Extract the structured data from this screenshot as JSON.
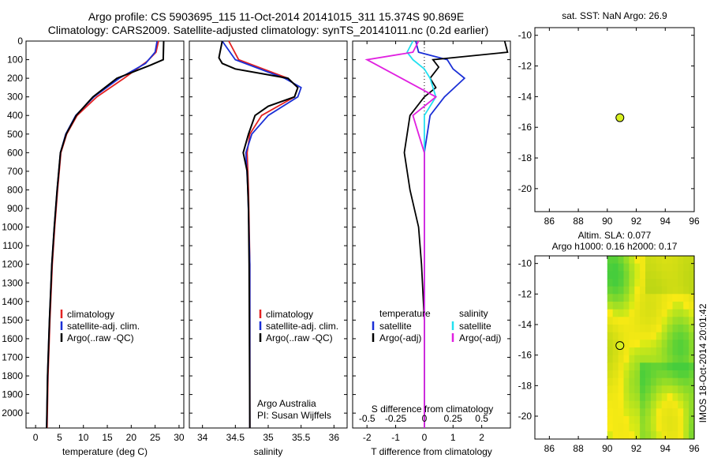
{
  "header": {
    "line1": "Argo profile: CS 5903695_115 11-Oct-2014 20141015_311 15.374S 90.869E",
    "line2": "Climatology: CARS2009. Satellite-adjusted climatology: synTS_20141011.nc (0.2d earlier)"
  },
  "side_stamp": "IMOS 18-Oct-2014 20:01:42",
  "colors": {
    "climatology": "#e32222",
    "satellite": "#1a2fd6",
    "argo": "#000000",
    "cyan": "#22e0f0",
    "magenta": "#e020e0",
    "marker": "#d8f020"
  },
  "chart_data": [
    {
      "type": "line",
      "title": "",
      "xlabel": "temperature (deg C)",
      "ylabel": "",
      "xlim": [
        -2,
        31
      ],
      "ylim": [
        2080,
        0
      ],
      "xticks": [
        "0",
        "5",
        "10",
        "15",
        "20",
        "25",
        "30"
      ],
      "yticks": [
        "0",
        "100",
        "200",
        "300",
        "400",
        "500",
        "600",
        "700",
        "800",
        "900",
        "1000",
        "1100",
        "1200",
        "1300",
        "1400",
        "1500",
        "1600",
        "1700",
        "1800",
        "1900",
        "2000"
      ],
      "legend": [
        "climatology",
        "satellite-adj. clim.",
        "Argo(..raw -QC)"
      ],
      "series": [
        {
          "name": "climatology",
          "depth": [
            0,
            60,
            110,
            200,
            300,
            400,
            500,
            600,
            800,
            1000,
            1200,
            1500,
            1800,
            2080
          ],
          "values": [
            25.7,
            25.2,
            23.3,
            18.5,
            12.8,
            8.7,
            6.5,
            5.3,
            4.6,
            4.0,
            3.5,
            3.0,
            2.6,
            2.4
          ]
        },
        {
          "name": "satellite-adj. clim.",
          "depth": [
            0,
            60,
            120,
            200,
            300,
            400,
            500,
            600,
            800,
            1000,
            1200,
            1500,
            1800,
            2080
          ],
          "values": [
            25.4,
            25.0,
            23.0,
            17.5,
            12.2,
            8.4,
            6.3,
            5.2,
            4.5,
            3.9,
            3.4,
            2.9,
            2.5,
            2.3
          ]
        },
        {
          "name": "Argo(..raw -QC)",
          "depth": [
            0,
            100,
            130,
            200,
            300,
            400,
            500,
            600,
            800,
            1000,
            1200,
            1500,
            1800,
            2080
          ],
          "values": [
            26.8,
            26.7,
            24.0,
            17.0,
            12.0,
            8.5,
            6.4,
            5.2,
            4.5,
            3.9,
            3.4,
            2.9,
            2.5,
            2.3
          ]
        }
      ]
    },
    {
      "type": "line",
      "title": "",
      "xlabel": "salinity",
      "xlim": [
        33.8,
        36.2
      ],
      "ylim": [
        2080,
        0
      ],
      "xticks": [
        "34",
        "34.5",
        "35",
        "35.5",
        "36"
      ],
      "legend": [
        "climatology",
        "satellite-adj. clim.",
        "Argo(..raw -QC)"
      ],
      "annotation": [
        "Argo Australia",
        "PI: Susan Wijffels"
      ],
      "series": [
        {
          "name": "climatology",
          "depth": [
            0,
            100,
            200,
            250,
            300,
            400,
            500,
            600,
            800,
            1200,
            2080
          ],
          "values": [
            34.4,
            34.55,
            35.3,
            35.45,
            35.4,
            34.9,
            34.72,
            34.68,
            34.7,
            34.72,
            34.72
          ]
        },
        {
          "name": "satellite-adj. clim.",
          "depth": [
            0,
            100,
            200,
            250,
            300,
            400,
            500,
            600,
            800,
            1200,
            2080
          ],
          "values": [
            34.3,
            34.5,
            35.25,
            35.5,
            35.45,
            35.0,
            34.75,
            34.66,
            34.69,
            34.72,
            34.72
          ]
        },
        {
          "name": "Argo(..raw -QC)",
          "depth": [
            0,
            90,
            120,
            150,
            200,
            250,
            300,
            350,
            400,
            500,
            600,
            700,
            900,
            1200,
            2080
          ],
          "values": [
            34.3,
            34.25,
            34.3,
            34.5,
            35.3,
            35.45,
            35.4,
            35.0,
            34.8,
            34.7,
            34.62,
            34.68,
            34.7,
            34.71,
            34.72
          ]
        }
      ]
    },
    {
      "type": "line",
      "title": "",
      "xlabel": "T difference from climatology",
      "xlabel2": "S difference from climatology",
      "xlim": [
        -2.5,
        3
      ],
      "ylim": [
        2080,
        0
      ],
      "xticks": [
        "-2",
        "-1",
        "0",
        "1",
        "2"
      ],
      "xticks2": [
        "-0.5",
        "-0.25",
        "0",
        "0.25",
        "0.5"
      ],
      "legend_temperature": [
        "temperature",
        "satellite",
        "Argo(-adj)"
      ],
      "legend_salinity": [
        "salinity",
        "satellite",
        "Argo(-adj)"
      ],
      "series": [
        {
          "name": "T satellite",
          "depth": [
            0,
            60,
            100,
            150,
            200,
            300,
            400,
            600,
            800,
            1200,
            2080
          ],
          "values": [
            -0.3,
            -0.2,
            0.8,
            1.0,
            1.4,
            0.7,
            0.2,
            0.0,
            0.0,
            0.0,
            0.0
          ]
        },
        {
          "name": "T Argo(-adj)",
          "depth": [
            0,
            60,
            100,
            140,
            200,
            250,
            300,
            400,
            600,
            800,
            1000,
            1200,
            1500,
            2080
          ],
          "values": [
            2.8,
            2.9,
            0.3,
            0.5,
            0.2,
            0.4,
            0.0,
            -0.5,
            -0.7,
            -0.5,
            -0.2,
            -0.1,
            0.0,
            0.0
          ]
        },
        {
          "name": "S satellite",
          "depth": [
            0,
            60,
            100,
            150,
            200,
            300,
            400,
            600,
            1000,
            2080
          ],
          "values": [
            -0.1,
            -0.15,
            -0.1,
            0.0,
            0.05,
            0.1,
            0.0,
            0.0,
            0.0,
            0.0
          ]
        },
        {
          "name": "S Argo(-adj)",
          "depth": [
            0,
            60,
            100,
            150,
            200,
            300,
            400,
            500,
            600,
            1000,
            2080
          ],
          "values": [
            -0.05,
            -0.1,
            -0.5,
            -0.35,
            -0.2,
            0.1,
            -0.1,
            -0.05,
            0.0,
            0.0,
            0.0
          ]
        }
      ]
    },
    {
      "type": "scatter",
      "title": "sat. SST: NaN Argo: 26.9",
      "xlim": [
        85,
        96
      ],
      "ylim": [
        -21.5,
        -9.5
      ],
      "xticks": [
        "86",
        "88",
        "90",
        "92",
        "94",
        "96"
      ],
      "yticks": [
        "-10",
        "-12",
        "-14",
        "-16",
        "-18",
        "-20"
      ],
      "point": {
        "lon": 90.869,
        "lat": -15.374
      }
    },
    {
      "type": "heatmap",
      "title": "Altim. SLA: 0.077",
      "subtitle": "Argo h1000: 0.16 h2000: 0.17",
      "xlim": [
        85,
        96
      ],
      "ylim": [
        -21.5,
        -9.5
      ],
      "xticks": [
        "86",
        "88",
        "90",
        "92",
        "94",
        "96"
      ],
      "yticks": [
        "-10",
        "-12",
        "-14",
        "-16",
        "-18",
        "-20"
      ],
      "point": {
        "lon": 90.869,
        "lat": -15.374
      }
    }
  ]
}
